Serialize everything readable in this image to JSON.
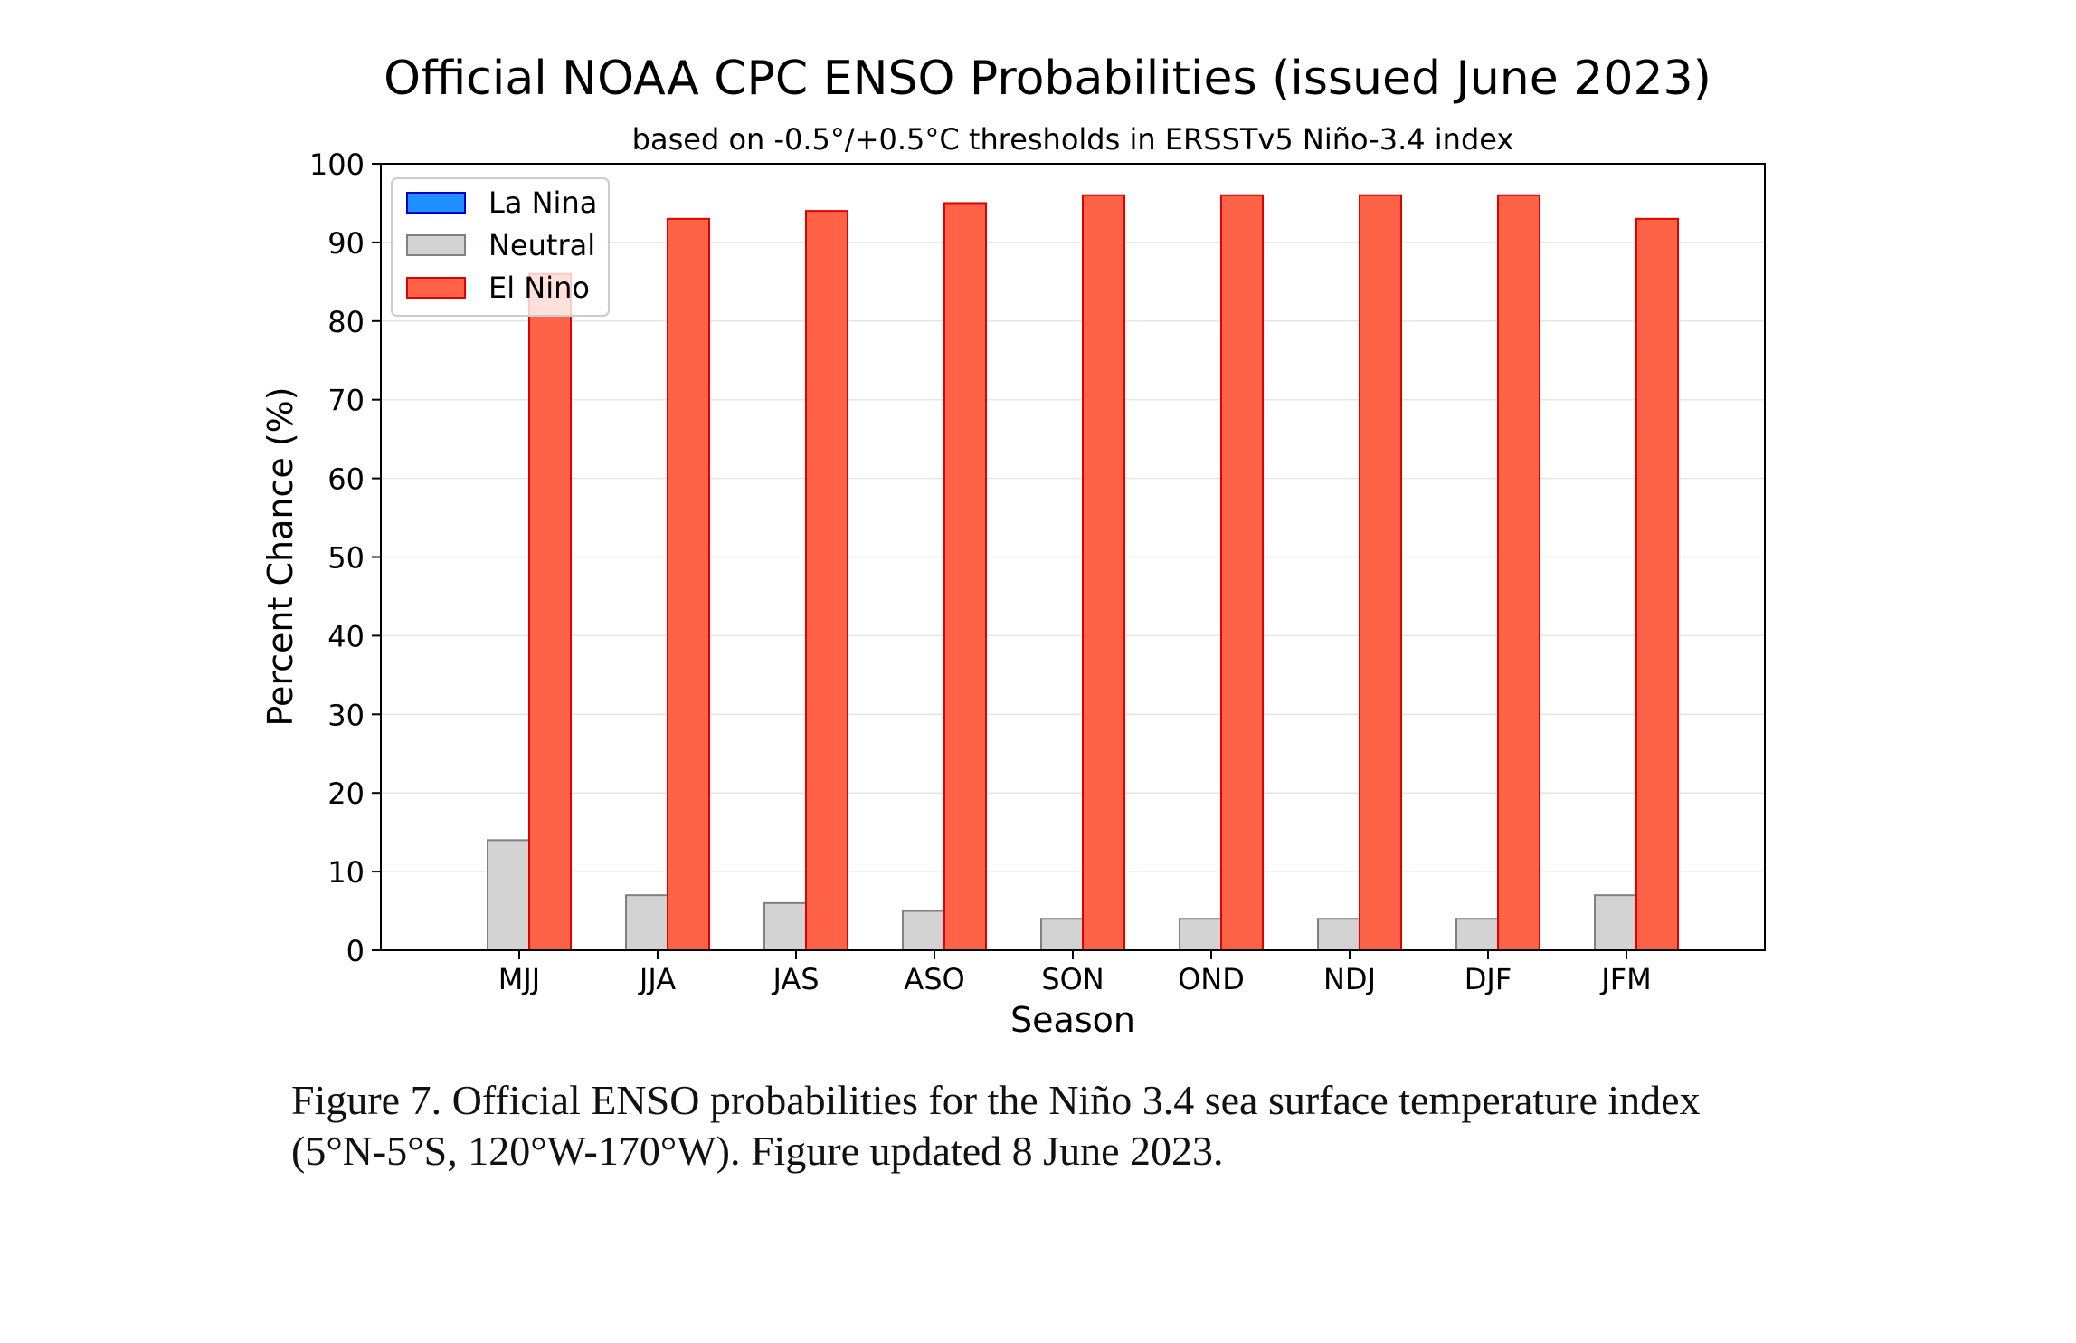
{
  "chart_data": {
    "type": "bar",
    "title": "Official NOAA CPC ENSO Probabilities (issued June 2023)",
    "subtitle": "based on -0.5°/+0.5°C thresholds in ERSSTv5 Niño-3.4 index",
    "xlabel": "Season",
    "ylabel": "Percent Chance (%)",
    "ylim": [
      0,
      100
    ],
    "yticks": [
      0,
      10,
      20,
      30,
      40,
      50,
      60,
      70,
      80,
      90,
      100
    ],
    "grid": true,
    "legend_position": "top-left",
    "categories": [
      "MJJ",
      "JJA",
      "JAS",
      "ASO",
      "SON",
      "OND",
      "NDJ",
      "DJF",
      "JFM"
    ],
    "series": [
      {
        "name": "La Nina",
        "color": "#1e90ff",
        "edge": "#0000cc",
        "values": [
          0,
          0,
          0,
          0,
          0,
          0,
          0,
          0,
          0
        ]
      },
      {
        "name": "Neutral",
        "color": "#d3d3d3",
        "edge": "#808080",
        "values": [
          14,
          7,
          6,
          5,
          4,
          4,
          4,
          4,
          7
        ]
      },
      {
        "name": "El Nino",
        "color": "#ff6347",
        "edge": "#e00000",
        "values": [
          86,
          93,
          94,
          95,
          96,
          96,
          96,
          96,
          93
        ]
      }
    ]
  },
  "caption": {
    "line1": "Figure 7. Official ENSO probabilities for the Niño 3.4 sea surface temperature index",
    "line2": "(5°N-5°S, 120°W-170°W). Figure updated 8 June 2023."
  }
}
